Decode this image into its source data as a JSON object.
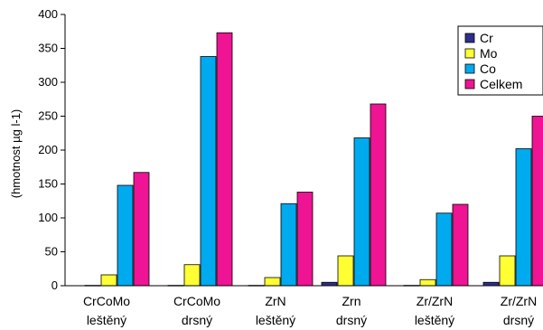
{
  "chart_data": {
    "type": "bar",
    "title": "",
    "xlabel": "",
    "ylabel": "(hmotnost µg l-1)",
    "ylim": [
      0,
      400
    ],
    "yticks": [
      0,
      50,
      100,
      150,
      200,
      250,
      300,
      350,
      400
    ],
    "grid": false,
    "legend_position": "top-right",
    "categories": [
      [
        "CrCoMo",
        "leštěný"
      ],
      [
        "CrCoMo",
        "drsný"
      ],
      [
        "ZrN",
        "leštěný"
      ],
      [
        "Zrn",
        "drsný"
      ],
      [
        "Zr/ZrN",
        "leštěný"
      ],
      [
        "Zr/ZrN",
        "drsný"
      ]
    ],
    "series": [
      {
        "name": "Cr",
        "color": "#2e2e8c",
        "values": [
          0.5,
          0.5,
          0.5,
          5,
          0.5,
          5
        ]
      },
      {
        "name": "Mo",
        "color": "#ffff33",
        "values": [
          16,
          31,
          12,
          44,
          9,
          44
        ]
      },
      {
        "name": "Co",
        "color": "#00aaee",
        "values": [
          148,
          338,
          121,
          218,
          107,
          202
        ]
      },
      {
        "name": "Celkem",
        "color": "#ee1493",
        "values": [
          167,
          373,
          138,
          268,
          120,
          250
        ]
      }
    ]
  }
}
